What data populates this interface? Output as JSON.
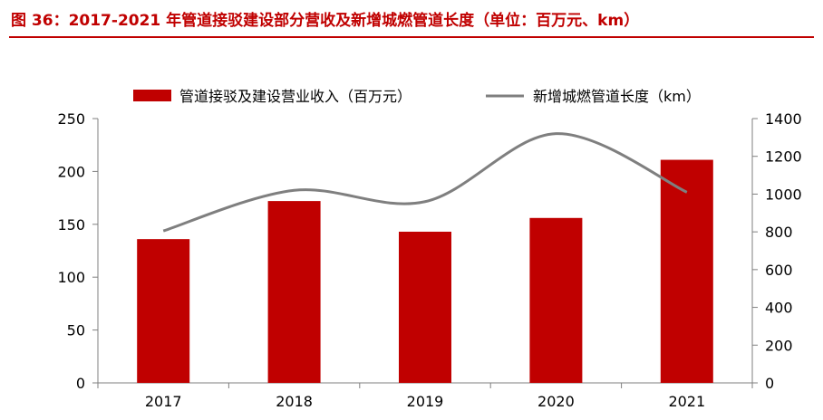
{
  "title": "图 36：2017-2021 年管道接驳建设部分营收及新增城燃管道长度（单位：百万元、km）",
  "colors": {
    "bar": "#c00000",
    "line": "#7f7f7f",
    "title": "#c00000"
  },
  "chart_data": {
    "type": "bar",
    "categories": [
      "2017",
      "2018",
      "2019",
      "2020",
      "2021"
    ],
    "series": [
      {
        "name": "管道接驳及建设营业收入（百万元）",
        "type": "bar",
        "axis": "left",
        "values": [
          136,
          172,
          143,
          156,
          211
        ]
      },
      {
        "name": "新增城燃管道长度（km）",
        "type": "line",
        "axis": "right",
        "values": [
          805,
          1020,
          960,
          1320,
          1010
        ]
      }
    ],
    "y_left": {
      "min": 0,
      "max": 250,
      "ticks": [
        0,
        50,
        100,
        150,
        200,
        250
      ]
    },
    "y_right": {
      "min": 0,
      "max": 1400,
      "ticks": [
        0,
        200,
        400,
        600,
        800,
        1000,
        1200,
        1400
      ]
    },
    "legend_position": "top",
    "grid": false
  }
}
